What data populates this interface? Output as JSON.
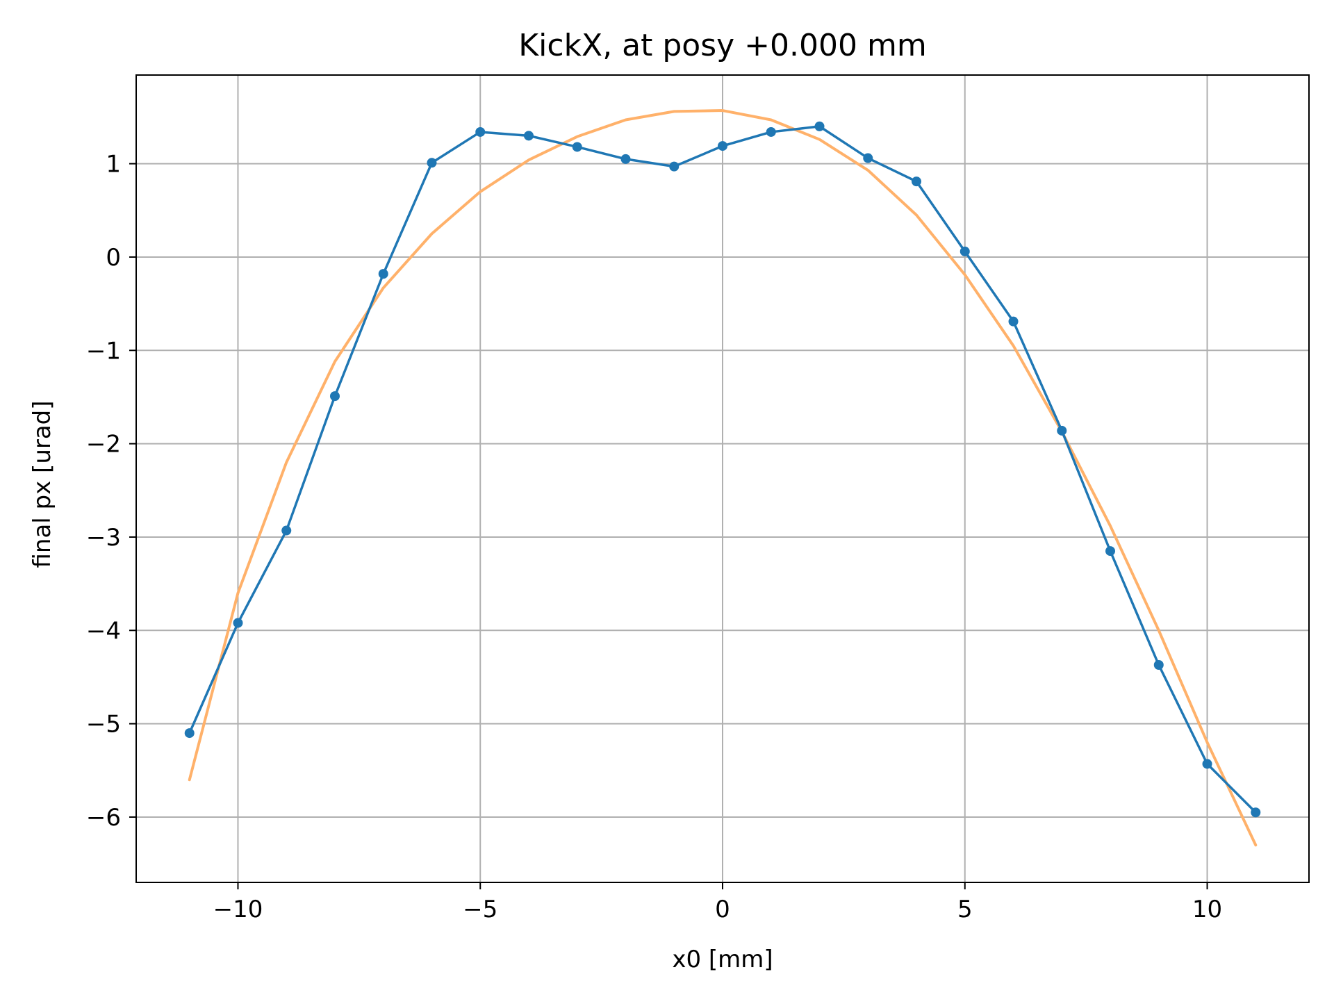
{
  "chart_data": {
    "type": "line",
    "title": "KickX, at posy +0.000 mm",
    "xlabel": "x0 [mm]",
    "ylabel": "final px [urad]",
    "xlim": [
      -12.1,
      12.1
    ],
    "ylim": [
      -6.7,
      1.95
    ],
    "xticks": [
      -10,
      -5,
      0,
      5,
      10
    ],
    "xtick_labels": [
      "−10",
      "−5",
      "0",
      "5",
      "10"
    ],
    "yticks": [
      1,
      0,
      -1,
      -2,
      -3,
      -4,
      -5,
      -6
    ],
    "ytick_labels": [
      "1",
      "0",
      "−1",
      "−2",
      "−3",
      "−4",
      "−5",
      "−6"
    ],
    "grid": true,
    "colors": {
      "measured": "#1f77b4",
      "fit": "#ffb16a"
    },
    "series": [
      {
        "style": "line-markers",
        "x": [
          -11,
          -10,
          -9,
          -8,
          -7,
          -6,
          -5,
          -4,
          -3,
          -2,
          -1,
          0,
          1,
          2,
          3,
          4,
          5,
          6,
          7,
          8,
          9,
          10,
          11
        ],
        "y": [
          -5.1,
          -3.92,
          -2.93,
          -1.49,
          -0.18,
          1.01,
          1.34,
          1.3,
          1.18,
          1.05,
          0.97,
          1.19,
          1.34,
          1.4,
          1.06,
          0.81,
          0.06,
          -0.69,
          -1.86,
          -3.15,
          -4.37,
          -5.43,
          -5.95
        ]
      },
      {
        "style": "line",
        "x": [
          -11,
          -10,
          -9,
          -8,
          -7,
          -6,
          -5,
          -4,
          -3,
          -2,
          -1,
          0,
          1,
          2,
          3,
          4,
          5,
          6,
          7,
          8,
          9,
          10,
          11
        ],
        "y": [
          -5.6,
          -3.6,
          -2.2,
          -1.12,
          -0.33,
          0.25,
          0.7,
          1.04,
          1.29,
          1.47,
          1.56,
          1.57,
          1.47,
          1.26,
          0.93,
          0.45,
          -0.19,
          -0.95,
          -1.87,
          -2.88,
          -4.0,
          -5.2,
          -6.3
        ]
      }
    ]
  }
}
